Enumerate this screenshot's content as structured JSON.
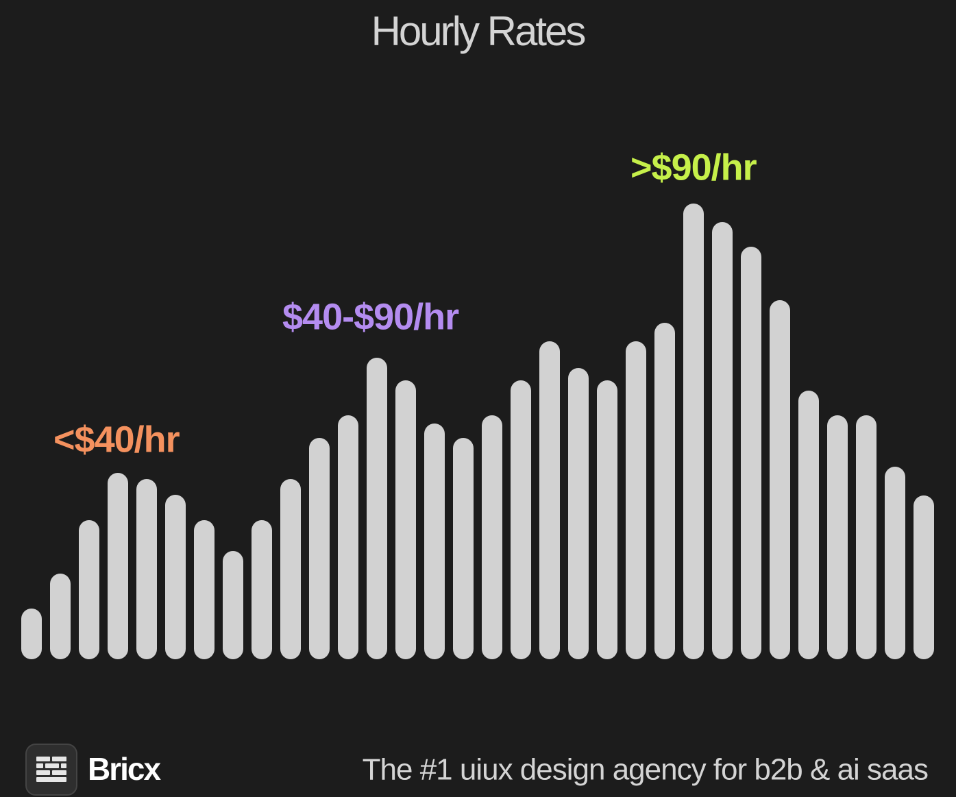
{
  "chart_data": {
    "type": "bar",
    "title": "Hourly Rates",
    "values": [
      74,
      125,
      203,
      272,
      263,
      240,
      203,
      158,
      203,
      263,
      323,
      356,
      440,
      407,
      344,
      323,
      356,
      407,
      464,
      425,
      407,
      464,
      491,
      665,
      638,
      602,
      524,
      392,
      356,
      356,
      281,
      239
    ],
    "color": "#d2d2d2",
    "ylim": [
      0,
      700
    ],
    "grid": false,
    "annotations": [
      {
        "text": "<$40/hr",
        "color": "#f4915e"
      },
      {
        "text": "$40-$90/hr",
        "color": "#b48cf0"
      },
      {
        "text": ">$90/hr",
        "color": "#c6f04a"
      }
    ]
  },
  "footer": {
    "brand": "Bricx",
    "tagline": "The #1 uiux design agency for b2b & ai saas"
  }
}
